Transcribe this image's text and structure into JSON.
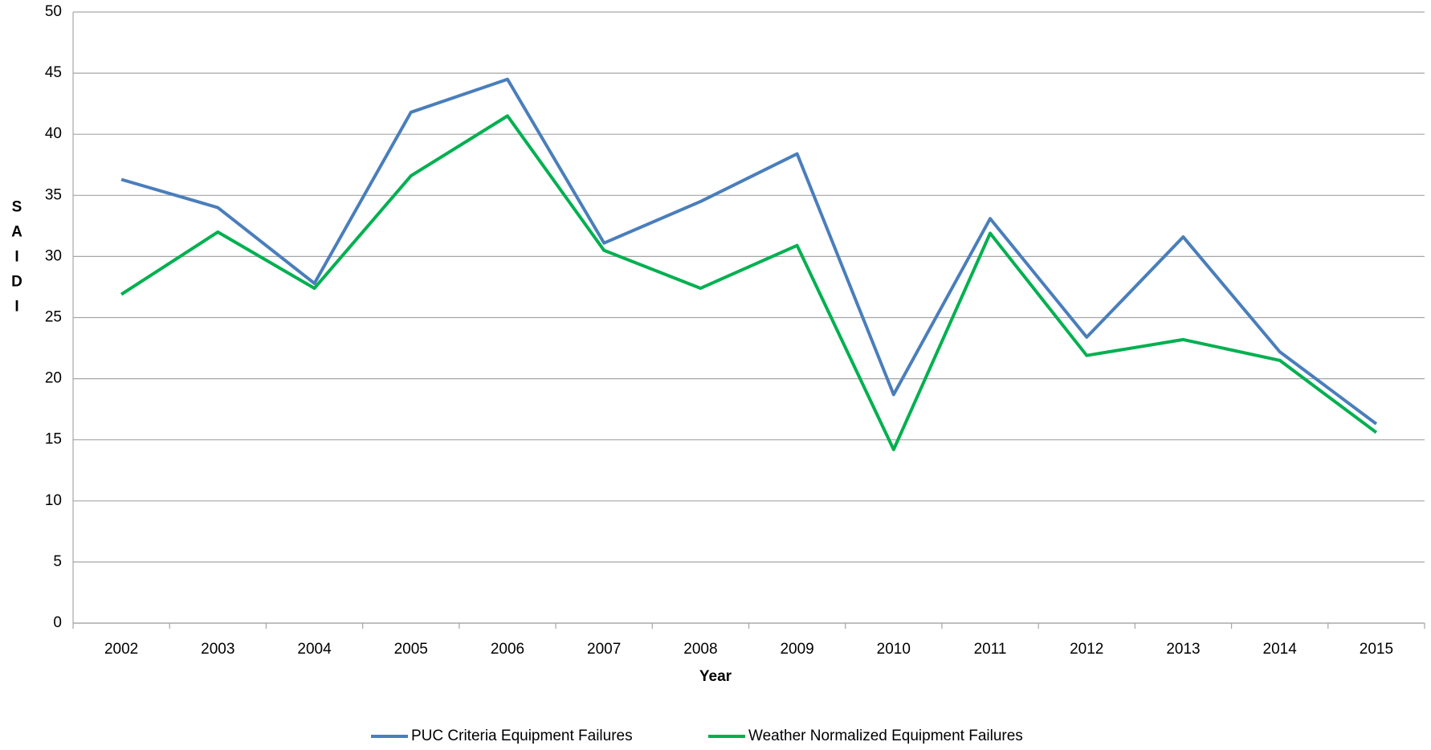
{
  "chart_data": {
    "type": "line",
    "x_label": "Year",
    "y_label": "SAIDI",
    "categories": [
      "2002",
      "2003",
      "2004",
      "2005",
      "2006",
      "2007",
      "2008",
      "2009",
      "2010",
      "2011",
      "2012",
      "2013",
      "2014",
      "2015"
    ],
    "series": [
      {
        "name": "PUC Criteria Equipment Failures",
        "color": "#4a7ebb",
        "values": [
          36.3,
          34.0,
          27.8,
          41.8,
          44.5,
          31.1,
          34.5,
          38.4,
          18.7,
          33.1,
          23.4,
          31.6,
          22.2,
          16.3
        ]
      },
      {
        "name": "Weather Normalized Equipment Failures",
        "color": "#00b050",
        "values": [
          26.9,
          32.0,
          27.4,
          36.6,
          41.5,
          30.5,
          27.4,
          30.9,
          14.2,
          31.9,
          21.9,
          23.2,
          21.5,
          15.6
        ]
      }
    ],
    "ylim": [
      0,
      50
    ],
    "yticks": [
      0,
      5,
      10,
      15,
      20,
      25,
      30,
      35,
      40,
      45,
      50
    ],
    "grid": true,
    "legend": "bottom"
  }
}
